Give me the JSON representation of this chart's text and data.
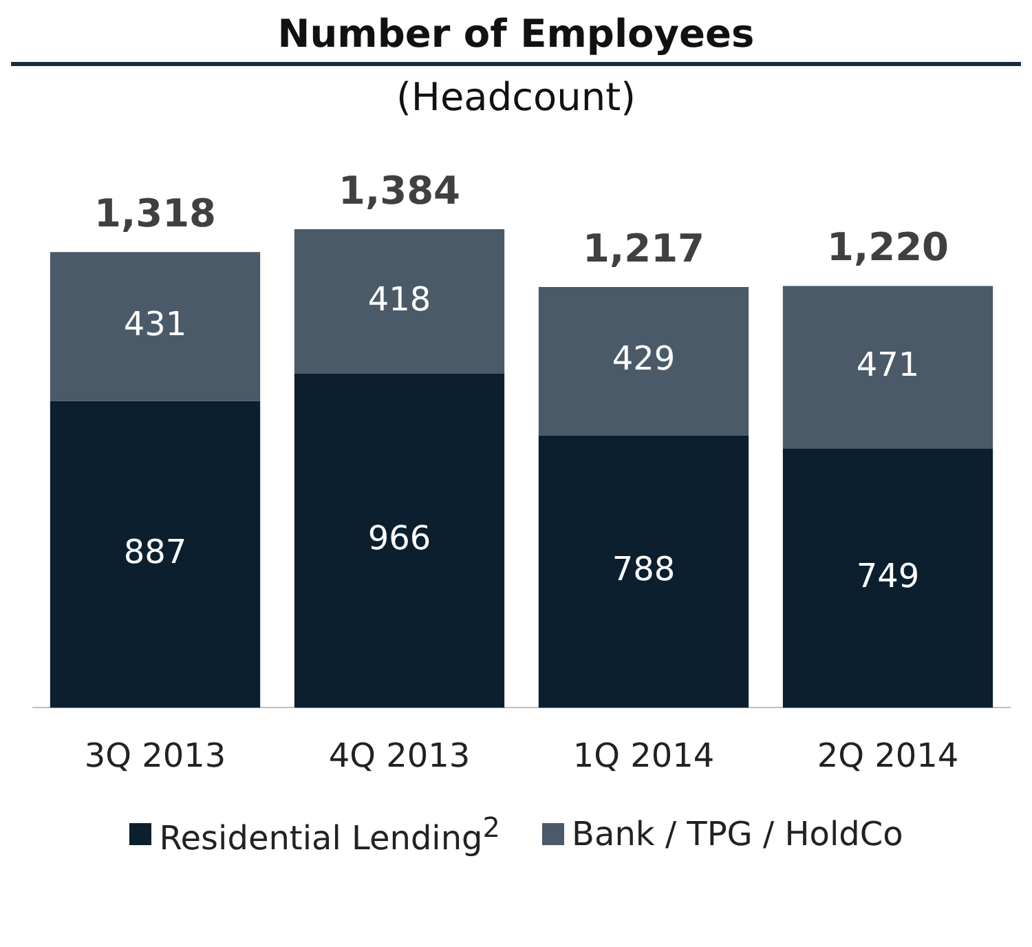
{
  "chart_data": {
    "type": "bar",
    "title": "Number of Employees",
    "subtitle": "(Headcount)",
    "categories": [
      "3Q 2013",
      "4Q 2013",
      "1Q 2014",
      "2Q 2014"
    ],
    "stacked": true,
    "relative": false,
    "data_labels": true,
    "totals": [
      "1,318",
      "1,384",
      "1,217",
      "1,220"
    ],
    "legend": "bottom",
    "grid": false,
    "series": [
      {
        "name": "Residential Lending$^{2}$",
        "color": "#0b1f2e",
        "values": [
          887,
          966,
          788,
          749
        ]
      },
      {
        "name": "Bank / TPG / HoldCo",
        "color": "#4b5a68",
        "values": [
          431,
          418,
          429,
          471
        ]
      }
    ]
  }
}
